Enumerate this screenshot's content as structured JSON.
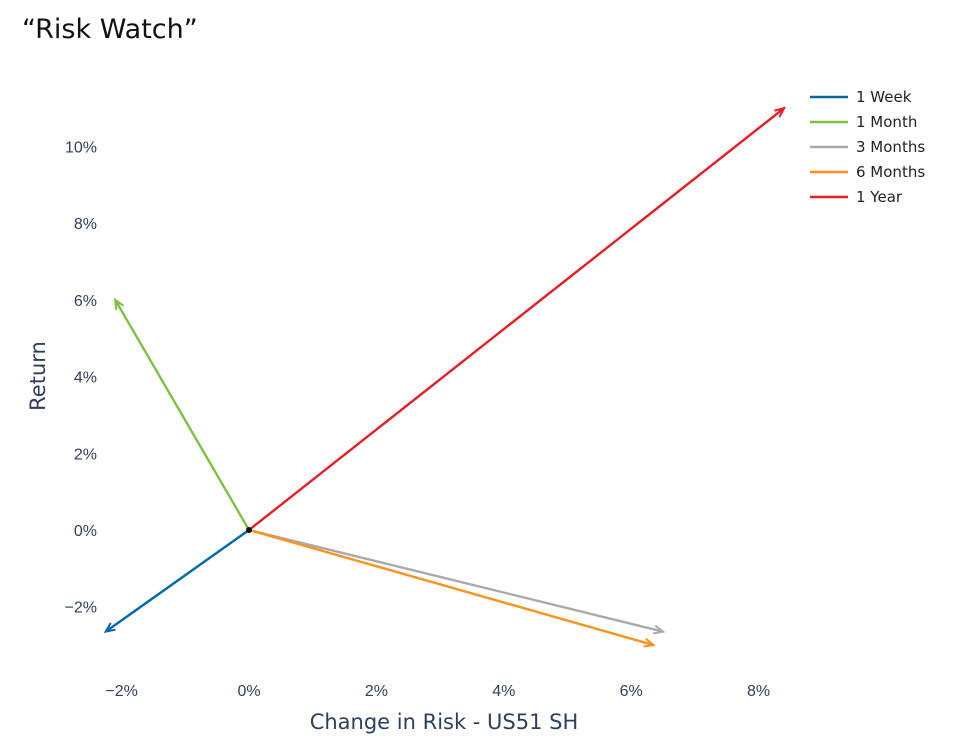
{
  "chart_data": {
    "type": "vector",
    "title": "“Risk Watch”",
    "xlabel": "Change in Risk - US51 SH",
    "ylabel": "Return",
    "xlim": [
      -2.3,
      9.0
    ],
    "ylim": [
      -3.8,
      12.2
    ],
    "x_ticks": [
      -2,
      0,
      2,
      4,
      6,
      8
    ],
    "x_tick_labels": [
      "−2%",
      "0%",
      "2%",
      "4%",
      "6%",
      "8%"
    ],
    "y_ticks": [
      -2,
      0,
      2,
      4,
      6,
      8,
      10
    ],
    "y_tick_labels": [
      "−2%",
      "0%",
      "2%",
      "4%",
      "6%",
      "8%",
      "10%"
    ],
    "origin": [
      0,
      0
    ],
    "grid": false,
    "legend_position": "top-right",
    "series": [
      {
        "name": "1 Week",
        "color": "#0068a8",
        "x": [
          0,
          -2.25
        ],
        "y": [
          0,
          -2.65
        ]
      },
      {
        "name": "1 Month",
        "color": "#7cc242",
        "x": [
          0,
          -2.1
        ],
        "y": [
          0,
          6.0
        ]
      },
      {
        "name": "3 Months",
        "color": "#a9a9a9",
        "x": [
          0,
          6.5
        ],
        "y": [
          0,
          -2.65
        ]
      },
      {
        "name": "6 Months",
        "color": "#f7931e",
        "x": [
          0,
          6.35
        ],
        "y": [
          0,
          -3.0
        ]
      },
      {
        "name": "1 Year",
        "color": "#e41e25",
        "x": [
          0,
          8.4
        ],
        "y": [
          0,
          11.0
        ]
      }
    ]
  }
}
